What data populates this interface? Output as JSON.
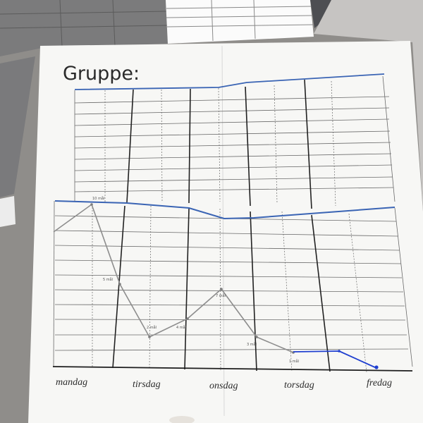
{
  "sheet": {
    "title": "Gruppe:",
    "days": [
      "mandag",
      "tirsdag",
      "onsdag",
      "torsdag",
      "fredag"
    ],
    "notes": [
      "10 mål",
      "5 mål",
      "2 mål",
      "4 mål",
      "7 mål",
      "3 mål",
      "1 mål"
    ],
    "colors": {
      "paper": "#f7f7f5",
      "grid": "#5e5e5e",
      "title_rule": "#3a64b4",
      "pen_grey": "#8d8d8d",
      "pen_blue": "#1f3fd0"
    }
  }
}
